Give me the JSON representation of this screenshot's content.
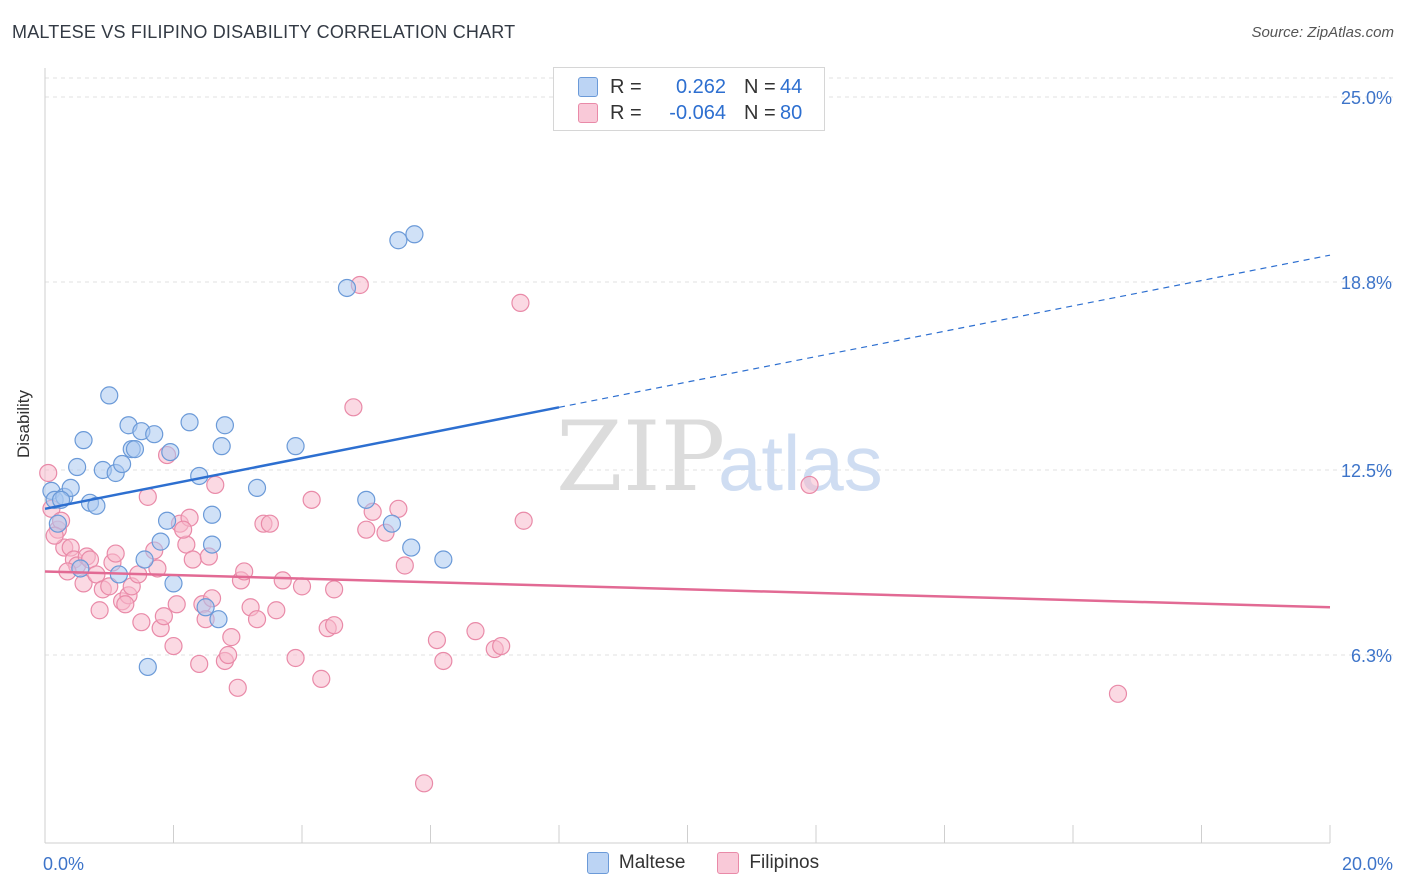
{
  "title": "MALTESE VS FILIPINO DISABILITY CORRELATION CHART",
  "source": "Source: ZipAtlas.com",
  "watermark": {
    "part1": "ZIP",
    "part2": "atlas"
  },
  "legend": {
    "rows": [
      {
        "r_label": "R =",
        "r_value": "0.262",
        "n_label": "N =",
        "n_value": "44"
      },
      {
        "r_label": "R =",
        "r_value": "-0.064",
        "n_label": "N =",
        "n_value": "80"
      }
    ]
  },
  "colors": {
    "maltese_fill": "#a9c8f0",
    "maltese_stroke": "#6b9ad8",
    "maltese_line": "#2d6fd0",
    "filipinos_fill": "#f7b9cc",
    "filipinos_stroke": "#e98aa8",
    "filipinos_line": "#e26a94",
    "tick_label": "#3d74c9",
    "grid": "#e2e2e2"
  },
  "chart_data": {
    "type": "scatter",
    "title": "MALTESE VS FILIPINO DISABILITY CORRELATION CHART",
    "xlabel": "",
    "ylabel": "Disability",
    "xlim": [
      0,
      20
    ],
    "ylim": [
      0,
      25.8
    ],
    "x_tick_labels": [
      "0.0%",
      "20.0%"
    ],
    "y_ticks": [
      6.3,
      12.5,
      18.8,
      25.0
    ],
    "y_tick_labels": [
      "6.3%",
      "12.5%",
      "18.8%",
      "25.0%"
    ],
    "grid": true,
    "legend_position": "bottom",
    "series": [
      {
        "name": "Maltese",
        "points": [
          [
            0.1,
            11.8
          ],
          [
            0.15,
            11.5
          ],
          [
            0.2,
            10.7
          ],
          [
            0.3,
            11.6
          ],
          [
            0.4,
            11.9
          ],
          [
            0.5,
            12.6
          ],
          [
            0.6,
            13.5
          ],
          [
            0.7,
            11.4
          ],
          [
            0.8,
            11.3
          ],
          [
            0.9,
            12.5
          ],
          [
            1.0,
            15.0
          ],
          [
            1.1,
            12.4
          ],
          [
            1.2,
            12.7
          ],
          [
            1.3,
            14.0
          ],
          [
            1.35,
            13.2
          ],
          [
            1.4,
            13.2
          ],
          [
            1.5,
            13.8
          ],
          [
            1.55,
            9.5
          ],
          [
            1.7,
            13.7
          ],
          [
            1.8,
            10.1
          ],
          [
            1.9,
            10.8
          ],
          [
            1.95,
            13.1
          ],
          [
            2.0,
            8.7
          ],
          [
            2.25,
            14.1
          ],
          [
            2.4,
            12.3
          ],
          [
            2.5,
            7.9
          ],
          [
            2.6,
            11.0
          ],
          [
            2.7,
            7.5
          ],
          [
            2.75,
            13.3
          ],
          [
            2.8,
            14.0
          ],
          [
            3.3,
            11.9
          ],
          [
            3.9,
            13.3
          ],
          [
            4.7,
            18.6
          ],
          [
            5.0,
            11.5
          ],
          [
            5.4,
            10.7
          ],
          [
            5.5,
            20.2
          ],
          [
            5.7,
            9.9
          ],
          [
            5.75,
            20.4
          ],
          [
            6.2,
            9.5
          ],
          [
            1.6,
            5.9
          ],
          [
            0.55,
            9.2
          ],
          [
            2.6,
            10.0
          ],
          [
            0.25,
            11.5
          ],
          [
            1.15,
            9.0
          ]
        ]
      },
      {
        "name": "Filipinos",
        "points": [
          [
            0.05,
            12.4
          ],
          [
            0.1,
            11.2
          ],
          [
            0.2,
            10.5
          ],
          [
            0.25,
            10.8
          ],
          [
            0.3,
            9.9
          ],
          [
            0.4,
            9.9
          ],
          [
            0.45,
            9.5
          ],
          [
            0.5,
            9.3
          ],
          [
            0.6,
            8.7
          ],
          [
            0.65,
            9.6
          ],
          [
            0.7,
            9.5
          ],
          [
            0.8,
            9.0
          ],
          [
            0.85,
            7.8
          ],
          [
            0.9,
            8.5
          ],
          [
            1.0,
            8.6
          ],
          [
            1.05,
            9.4
          ],
          [
            1.1,
            9.7
          ],
          [
            1.2,
            8.1
          ],
          [
            1.3,
            8.3
          ],
          [
            1.35,
            8.6
          ],
          [
            1.45,
            9.0
          ],
          [
            1.5,
            7.4
          ],
          [
            1.6,
            11.6
          ],
          [
            1.7,
            9.8
          ],
          [
            1.75,
            9.2
          ],
          [
            1.8,
            7.2
          ],
          [
            1.85,
            7.6
          ],
          [
            1.9,
            13.0
          ],
          [
            2.0,
            6.6
          ],
          [
            2.05,
            8.0
          ],
          [
            2.1,
            10.7
          ],
          [
            2.2,
            10.0
          ],
          [
            2.25,
            10.9
          ],
          [
            2.3,
            9.5
          ],
          [
            2.4,
            6.0
          ],
          [
            2.45,
            8.0
          ],
          [
            2.5,
            7.5
          ],
          [
            2.55,
            9.6
          ],
          [
            2.6,
            8.2
          ],
          [
            2.65,
            12.0
          ],
          [
            2.8,
            6.1
          ],
          [
            2.85,
            6.3
          ],
          [
            2.9,
            6.9
          ],
          [
            3.0,
            5.2
          ],
          [
            3.05,
            8.8
          ],
          [
            3.1,
            9.1
          ],
          [
            3.2,
            7.9
          ],
          [
            3.3,
            7.5
          ],
          [
            3.4,
            10.7
          ],
          [
            3.5,
            10.7
          ],
          [
            3.6,
            7.8
          ],
          [
            3.7,
            8.8
          ],
          [
            3.9,
            6.2
          ],
          [
            4.0,
            8.6
          ],
          [
            4.15,
            11.5
          ],
          [
            4.3,
            5.5
          ],
          [
            4.4,
            7.2
          ],
          [
            4.5,
            7.3
          ],
          [
            4.5,
            8.5
          ],
          [
            4.8,
            14.6
          ],
          [
            4.9,
            18.7
          ],
          [
            5.0,
            10.5
          ],
          [
            5.1,
            11.1
          ],
          [
            5.3,
            10.4
          ],
          [
            5.5,
            11.2
          ],
          [
            5.6,
            9.3
          ],
          [
            5.9,
            2.0
          ],
          [
            6.1,
            6.8
          ],
          [
            6.2,
            6.1
          ],
          [
            6.7,
            7.1
          ],
          [
            7.0,
            6.5
          ],
          [
            7.1,
            6.6
          ],
          [
            7.4,
            18.1
          ],
          [
            7.45,
            10.8
          ],
          [
            11.9,
            12.0
          ],
          [
            16.7,
            5.0
          ],
          [
            0.15,
            10.3
          ],
          [
            0.35,
            9.1
          ],
          [
            1.25,
            8.0
          ],
          [
            2.15,
            10.5
          ]
        ]
      }
    ],
    "trend_lines": [
      {
        "series": "Maltese",
        "x_start": 0.0,
        "y_start": 11.2,
        "x_solid_end": 8.0,
        "y_solid_end": 14.6,
        "x_end": 20.0,
        "y_end": 19.7,
        "extension": "dashed"
      },
      {
        "series": "Filipinos",
        "x_start": 0.0,
        "y_start": 9.1,
        "x_end": 20.0,
        "y_end": 7.9
      }
    ]
  }
}
